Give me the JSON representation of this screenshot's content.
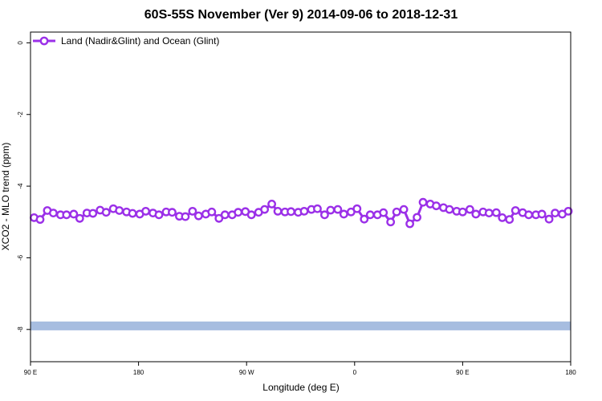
{
  "chart_data": {
    "type": "line",
    "title": "60S-55S November (Ver 9)   2014-09-06 to 2018-12-31",
    "xlabel": "Longitude (deg E)",
    "ylabel": "XCO2 - MLO trend (ppm)",
    "x_ticks": [
      {
        "value": 90,
        "label": "90 E"
      },
      {
        "value": 180,
        "label": "180"
      },
      {
        "value": 270,
        "label": "90 W"
      },
      {
        "value": 360,
        "label": "0"
      },
      {
        "value": 450,
        "label": "90 E"
      },
      {
        "value": 540,
        "label": "180"
      }
    ],
    "xlim": [
      90,
      540
    ],
    "ylim": [
      -8.9,
      0.3
    ],
    "y_ticks": [
      0,
      -2,
      -4,
      -6,
      -8
    ],
    "grid": false,
    "legend_position": "top-left",
    "series": [
      {
        "name": "Land (Nadir&Glint) and Ocean (Glint)",
        "color": "#9b30e8",
        "marker": "open-circle",
        "x": [
          93,
          98,
          104,
          109,
          115,
          120,
          126,
          131,
          137,
          142,
          148,
          153,
          159,
          164,
          170,
          175,
          181,
          186,
          192,
          197,
          203,
          208,
          214,
          219,
          225,
          230,
          236,
          241,
          247,
          252,
          258,
          263,
          269,
          274,
          280,
          285,
          291,
          296,
          302,
          307,
          313,
          318,
          324,
          329,
          335,
          340,
          346,
          351,
          357,
          362,
          368,
          373,
          379,
          384,
          390,
          395,
          401,
          406,
          412,
          417,
          423,
          428,
          434,
          439,
          445,
          450,
          456,
          461,
          467,
          472,
          478,
          483,
          489,
          494,
          500,
          505,
          511,
          516,
          522,
          527,
          533,
          538
        ],
        "values": [
          -4.88,
          -4.93,
          -4.68,
          -4.75,
          -4.8,
          -4.8,
          -4.78,
          -4.9,
          -4.75,
          -4.76,
          -4.67,
          -4.73,
          -4.63,
          -4.68,
          -4.72,
          -4.76,
          -4.78,
          -4.7,
          -4.75,
          -4.8,
          -4.72,
          -4.73,
          -4.84,
          -4.85,
          -4.7,
          -4.83,
          -4.78,
          -4.72,
          -4.9,
          -4.8,
          -4.8,
          -4.73,
          -4.71,
          -4.8,
          -4.73,
          -4.65,
          -4.5,
          -4.7,
          -4.72,
          -4.71,
          -4.73,
          -4.7,
          -4.65,
          -4.63,
          -4.8,
          -4.67,
          -4.65,
          -4.78,
          -4.72,
          -4.63,
          -4.92,
          -4.8,
          -4.8,
          -4.74,
          -5.0,
          -4.72,
          -4.65,
          -5.05,
          -4.87,
          -4.45,
          -4.5,
          -4.55,
          -4.6,
          -4.65,
          -4.7,
          -4.72,
          -4.65,
          -4.78,
          -4.72,
          -4.75,
          -4.74,
          -4.88,
          -4.93,
          -4.68,
          -4.74,
          -4.8,
          -4.8,
          -4.78,
          -4.92,
          -4.75,
          -4.78,
          -4.7
        ]
      },
      {
        "name": "",
        "color": "#a7bde0",
        "marker": "band",
        "x": [
          90,
          540
        ],
        "values": [
          -7.9,
          -7.9
        ]
      }
    ]
  }
}
